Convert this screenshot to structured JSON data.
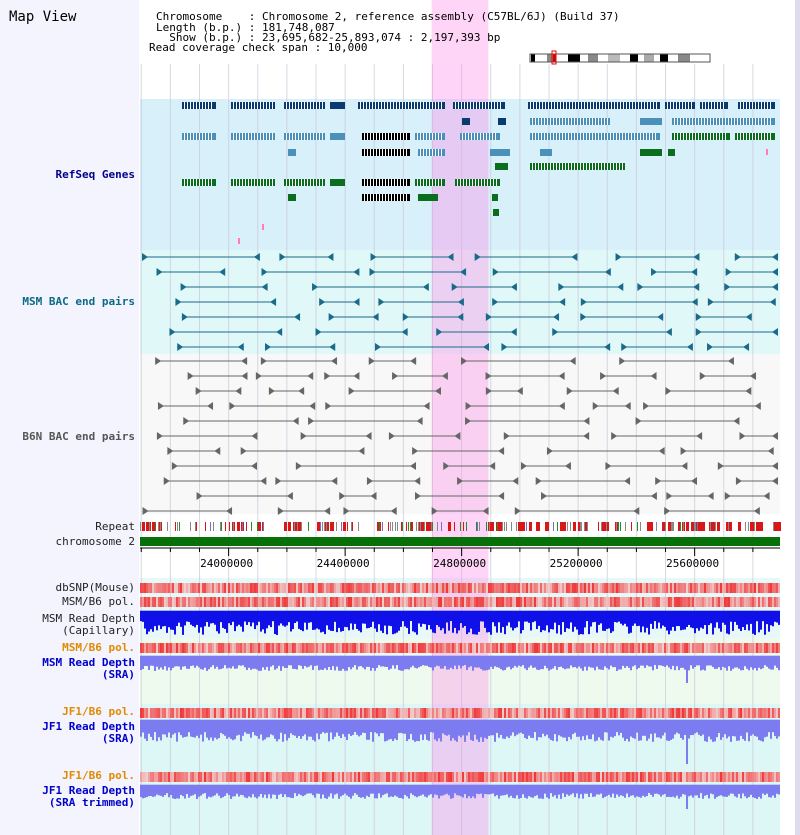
{
  "header": {
    "title": "Map View",
    "chromosome_line": "Chromosome    : Chromosome 2, reference assembly (C57BL/6J) (Build 37)",
    "length_line": "Length (b.p.) : 181,748,087",
    "show_line": "  Show (b.p.) : 23,695,682-25,893,074 : 2,197,393 bp",
    "coverage_line": "Read coverage check span : 10,000"
  },
  "tracks": {
    "refseq": "RefSeq Genes",
    "msm_bac": "MSM BAC end pairs",
    "b6n_bac": "B6N BAC end pairs",
    "repeat": "Repeat",
    "chromosome": "chromosome 2",
    "dbsnp": "dbSNP(Mouse)",
    "msm_b6_pol": "MSM/B6 pol.",
    "msm_depth_cap": "MSM Read Depth\n(Capillary)",
    "msm_b6_pol_sra": "MSM/B6 pol.",
    "msm_depth_sra": "MSM Read Depth\n(SRA)",
    "jf1_b6_pol": "JF1/B6 pol.",
    "jf1_depth_sra": "JF1 Read Depth\n(SRA)",
    "jf1_b6_pol_trim": "JF1/B6 pol.",
    "jf1_depth_trim": "JF1 Read Depth\n(SRA trimmed)"
  },
  "axis": {
    "ticks": [
      {
        "value": 24000000,
        "label": "24000000"
      },
      {
        "value": 24400000,
        "label": "24400000"
      },
      {
        "value": 24800000,
        "label": "24800000"
      },
      {
        "value": 25200000,
        "label": "25200000"
      },
      {
        "value": 25600000,
        "label": "25600000"
      }
    ],
    "view_start": 23695682,
    "view_end": 25893074,
    "highlight": [
      24697000,
      24892000
    ]
  },
  "colors": {
    "refseq_dark": "#0a3a6e",
    "refseq_mid": "#4a90b8",
    "refseq_green": "#0a6e1e",
    "refseq_bg": "#d8f0fa",
    "msm_bac": "#1a6a8a",
    "b6n_bac": "#666666",
    "highlight": "#ff88e8",
    "chromosome": "#087008",
    "snp": "#e83030",
    "depth_cap": "#1010e8",
    "depth_sra": "#7c7cf0"
  }
}
